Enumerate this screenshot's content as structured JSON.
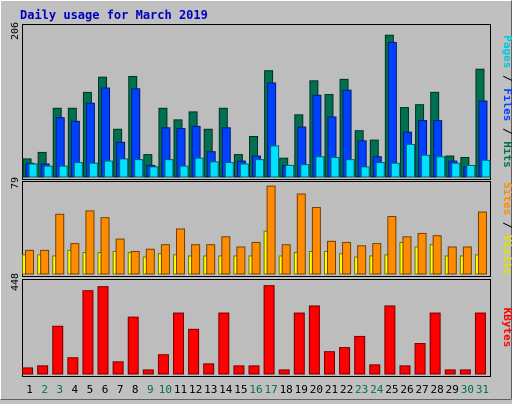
{
  "colors": {
    "background": "#c0c0c0",
    "plot_bg": "#bdbdbd",
    "title": "#0000c0",
    "pages": "#00e0ff",
    "files": "#0040ff",
    "hits": "#007050",
    "visits": "#ffff00",
    "sites": "#ff8c00",
    "kbytes": "#ff0000",
    "weekday_label": "#000000",
    "weekend_label": "#007050"
  },
  "chart_data": [
    {
      "type": "bar",
      "title": "Daily usage for March 2019",
      "ylabel_parts": [
        {
          "text": "Pages",
          "color": "#00c8e0"
        },
        {
          "text": " / ",
          "color": "#000000"
        },
        {
          "text": "Files",
          "color": "#0040ff"
        },
        {
          "text": " / ",
          "color": "#000000"
        },
        {
          "text": "Hits",
          "color": "#007050"
        }
      ],
      "ymax_label": "206",
      "ylim": [
        0,
        206
      ],
      "categories": [
        "1",
        "2",
        "3",
        "4",
        "5",
        "6",
        "7",
        "8",
        "9",
        "10",
        "11",
        "12",
        "13",
        "14",
        "15",
        "16",
        "17",
        "18",
        "19",
        "20",
        "21",
        "22",
        "23",
        "24",
        "25",
        "26",
        "27",
        "28",
        "29",
        "30",
        "31"
      ],
      "series": [
        {
          "name": "Hits",
          "values": [
            25,
            34,
            95,
            95,
            117,
            138,
            66,
            139,
            31,
            95,
            79,
            90,
            66,
            95,
            31,
            56,
            147,
            26,
            86,
            133,
            114,
            135,
            64,
            51,
            196,
            96,
            100,
            117,
            29,
            27,
            149
          ]
        },
        {
          "name": "Files",
          "values": [
            19,
            18,
            82,
            77,
            102,
            123,
            48,
            122,
            16,
            68,
            67,
            70,
            35,
            68,
            22,
            29,
            130,
            16,
            69,
            113,
            83,
            120,
            50,
            28,
            186,
            62,
            78,
            78,
            22,
            14,
            105
          ]
        },
        {
          "name": "Pages",
          "values": [
            18,
            15,
            15,
            20,
            19,
            22,
            25,
            24,
            14,
            24,
            15,
            26,
            21,
            20,
            18,
            24,
            43,
            16,
            17,
            28,
            27,
            24,
            14,
            20,
            19,
            45,
            30,
            28,
            19,
            16,
            23
          ]
        }
      ]
    },
    {
      "type": "bar",
      "ylabel_parts": [
        {
          "text": "Sites",
          "color": "#ff8c00"
        },
        {
          "text": " / ",
          "color": "#000000"
        },
        {
          "text": "Visits",
          "color": "#e0e000"
        }
      ],
      "ymax_label": "79",
      "ylim": [
        0,
        79
      ],
      "categories": [
        "1",
        "2",
        "3",
        "4",
        "5",
        "6",
        "7",
        "8",
        "9",
        "10",
        "11",
        "12",
        "13",
        "14",
        "15",
        "16",
        "17",
        "18",
        "19",
        "20",
        "21",
        "22",
        "23",
        "24",
        "25",
        "26",
        "27",
        "28",
        "29",
        "30",
        "31"
      ],
      "series": [
        {
          "name": "Visits",
          "values": [
            17,
            17,
            16,
            21,
            19,
            19,
            20,
            19,
            15,
            18,
            17,
            16,
            16,
            16,
            16,
            16,
            38,
            16,
            19,
            20,
            20,
            18,
            15,
            16,
            17,
            28,
            24,
            26,
            16,
            16,
            17
          ]
        },
        {
          "name": "Sites",
          "values": [
            21,
            21,
            53,
            27,
            56,
            50,
            31,
            20,
            22,
            26,
            40,
            26,
            26,
            33,
            24,
            28,
            78,
            26,
            71,
            59,
            29,
            28,
            25,
            27,
            51,
            33,
            36,
            34,
            24,
            24,
            55
          ]
        }
      ]
    },
    {
      "type": "bar",
      "ylabel_parts": [
        {
          "text": "KBytes",
          "color": "#ff0000"
        }
      ],
      "ymax_label": "448",
      "ylim": [
        0,
        448
      ],
      "categories": [
        "1",
        "2",
        "3",
        "4",
        "5",
        "6",
        "7",
        "8",
        "9",
        "10",
        "11",
        "12",
        "13",
        "14",
        "15",
        "16",
        "17",
        "18",
        "19",
        "20",
        "21",
        "22",
        "23",
        "24",
        "25",
        "26",
        "27",
        "28",
        "29",
        "30",
        "31"
      ],
      "series": [
        {
          "name": "KBytes",
          "values": [
            30,
            40,
            235,
            80,
            410,
            430,
            60,
            280,
            20,
            95,
            300,
            220,
            50,
            300,
            40,
            40,
            435,
            20,
            300,
            335,
            110,
            130,
            185,
            45,
            335,
            40,
            150,
            300,
            20,
            20,
            300
          ]
        }
      ]
    }
  ],
  "x_axis": {
    "labels": [
      "1",
      "2",
      "3",
      "4",
      "5",
      "6",
      "7",
      "8",
      "9",
      "10",
      "11",
      "12",
      "13",
      "14",
      "15",
      "16",
      "17",
      "18",
      "19",
      "20",
      "21",
      "22",
      "23",
      "24",
      "25",
      "26",
      "27",
      "28",
      "29",
      "30",
      "31"
    ],
    "weekend_days": [
      "2",
      "3",
      "9",
      "10",
      "16",
      "17",
      "23",
      "24",
      "30",
      "31"
    ]
  }
}
